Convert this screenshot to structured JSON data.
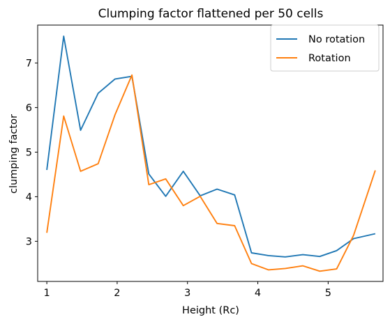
{
  "chart_data": {
    "type": "line",
    "title": "Clumping factor flattened per 50 cells",
    "xlabel": "Height (Rc)",
    "ylabel": "clumping factor",
    "xlim": [
      0.87,
      5.78
    ],
    "ylim": [
      2.1,
      7.85
    ],
    "xticks": [
      1,
      2,
      3,
      4,
      5
    ],
    "yticks": [
      3,
      4,
      5,
      6,
      7
    ],
    "grid": false,
    "legend_position": "top-right",
    "x": [
      1.0,
      1.24,
      1.48,
      1.73,
      1.97,
      2.21,
      2.45,
      2.69,
      2.94,
      3.18,
      3.42,
      3.67,
      3.91,
      4.15,
      4.39,
      4.64,
      4.88,
      5.12,
      5.36,
      5.67
    ],
    "series": [
      {
        "name": "No rotation",
        "color": "#1f77b4",
        "values": [
          4.6,
          7.6,
          5.49,
          6.32,
          6.64,
          6.7,
          4.51,
          4.01,
          4.57,
          4.02,
          4.17,
          4.04,
          2.74,
          2.68,
          2.65,
          2.7,
          2.66,
          2.79,
          3.06,
          3.17
        ]
      },
      {
        "name": "Rotation",
        "color": "#ff7f0e",
        "values": [
          3.19,
          5.81,
          4.57,
          4.74,
          5.84,
          6.73,
          4.27,
          4.4,
          3.8,
          4.01,
          3.4,
          3.35,
          2.5,
          2.36,
          2.39,
          2.45,
          2.33,
          2.38,
          3.13,
          4.59
        ]
      }
    ]
  }
}
